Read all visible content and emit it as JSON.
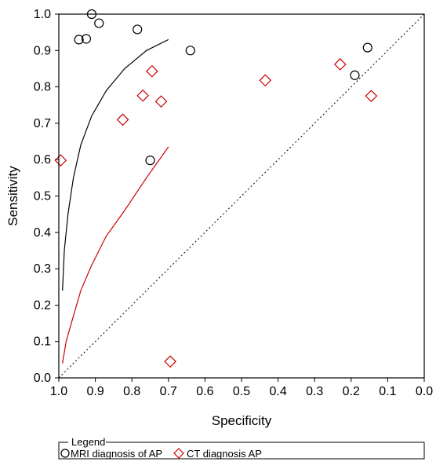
{
  "chart_data": {
    "type": "scatter",
    "title": "",
    "xlabel": "Specificity",
    "ylabel": "Sensitivity",
    "xlim": [
      1.0,
      0.0
    ],
    "ylim": [
      0.0,
      1.0
    ],
    "x_reversed": true,
    "xticks": [
      "1.0",
      "0.9",
      "0.8",
      "0.7",
      "0.6",
      "0.5",
      "0.4",
      "0.3",
      "0.2",
      "0.1",
      "0.0"
    ],
    "yticks": [
      "0.0",
      "0.1",
      "0.2",
      "0.3",
      "0.4",
      "0.5",
      "0.6",
      "0.7",
      "0.8",
      "0.9",
      "1.0"
    ],
    "grid": false,
    "reference_line": {
      "style": "dotted",
      "color": "#000000",
      "from": [
        1.0,
        0.0
      ],
      "to": [
        0.0,
        1.0
      ]
    },
    "series": [
      {
        "name": "MRI diagnosis of AP",
        "marker": "circle",
        "color": "#000000",
        "points": [
          {
            "x": 0.91,
            "y": 1.0
          },
          {
            "x": 0.89,
            "y": 0.975
          },
          {
            "x": 0.785,
            "y": 0.958
          },
          {
            "x": 0.945,
            "y": 0.93
          },
          {
            "x": 0.925,
            "y": 0.932
          },
          {
            "x": 0.64,
            "y": 0.9
          },
          {
            "x": 0.155,
            "y": 0.908
          },
          {
            "x": 0.19,
            "y": 0.832
          },
          {
            "x": 0.75,
            "y": 0.598
          }
        ],
        "sroc_curve": [
          {
            "x": 0.99,
            "y": 0.24
          },
          {
            "x": 0.985,
            "y": 0.35
          },
          {
            "x": 0.975,
            "y": 0.45
          },
          {
            "x": 0.96,
            "y": 0.55
          },
          {
            "x": 0.94,
            "y": 0.64
          },
          {
            "x": 0.91,
            "y": 0.72
          },
          {
            "x": 0.87,
            "y": 0.79
          },
          {
            "x": 0.82,
            "y": 0.85
          },
          {
            "x": 0.76,
            "y": 0.9
          },
          {
            "x": 0.7,
            "y": 0.93
          }
        ]
      },
      {
        "name": "CT diagnosis AP",
        "marker": "diamond",
        "color": "#cc0000",
        "points": [
          {
            "x": 0.745,
            "y": 0.843
          },
          {
            "x": 0.435,
            "y": 0.818
          },
          {
            "x": 0.23,
            "y": 0.862
          },
          {
            "x": 0.77,
            "y": 0.776
          },
          {
            "x": 0.72,
            "y": 0.76
          },
          {
            "x": 0.145,
            "y": 0.775
          },
          {
            "x": 0.825,
            "y": 0.71
          },
          {
            "x": 0.995,
            "y": 0.598
          },
          {
            "x": 0.695,
            "y": 0.045
          }
        ],
        "sroc_curve": [
          {
            "x": 0.99,
            "y": 0.04
          },
          {
            "x": 0.98,
            "y": 0.1
          },
          {
            "x": 0.96,
            "y": 0.17
          },
          {
            "x": 0.94,
            "y": 0.24
          },
          {
            "x": 0.91,
            "y": 0.31
          },
          {
            "x": 0.87,
            "y": 0.39
          },
          {
            "x": 0.82,
            "y": 0.46
          },
          {
            "x": 0.76,
            "y": 0.55
          },
          {
            "x": 0.7,
            "y": 0.635
          }
        ]
      }
    ],
    "legend": {
      "title": "Legend",
      "placement": "bottom-left",
      "entries": [
        "MRI diagnosis of AP",
        "CT diagnosis AP"
      ]
    }
  }
}
